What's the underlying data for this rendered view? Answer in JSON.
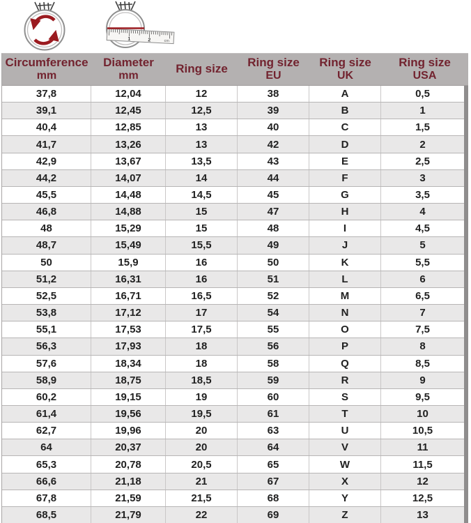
{
  "colors": {
    "header_bg": "#b4b1b1",
    "header_text": "#72232f",
    "accent_red": "#9b1b20",
    "row_bg": "#ffffff",
    "row_alt_bg": "#e9e8e8",
    "body_text": "#212121",
    "grid_line": "#c9c7c7",
    "table_right_edge": "#8f8d8d"
  },
  "icons": {
    "circumference_icon": "ring-with-circular-arrows-icon",
    "diameter_icon": "ring-with-ruler-icon",
    "ruler": {
      "label_1": "1",
      "label_2": "2",
      "unit": "cm"
    }
  },
  "chart_data": {
    "type": "table",
    "columns": [
      {
        "label": "Circumference",
        "sub": "mm"
      },
      {
        "label": "Diameter",
        "sub": "mm"
      },
      {
        "label": "Ring size",
        "sub": ""
      },
      {
        "label": "Ring size",
        "sub": "EU"
      },
      {
        "label": "Ring size",
        "sub": "UK"
      },
      {
        "label": "Ring size",
        "sub": "USA"
      }
    ],
    "rows": [
      [
        "37,8",
        "12,04",
        "12",
        "38",
        "A",
        "0,5"
      ],
      [
        "39,1",
        "12,45",
        "12,5",
        "39",
        "B",
        "1"
      ],
      [
        "40,4",
        "12,85",
        "13",
        "40",
        "C",
        "1,5"
      ],
      [
        "41,7",
        "13,26",
        "13",
        "42",
        "D",
        "2"
      ],
      [
        "42,9",
        "13,67",
        "13,5",
        "43",
        "E",
        "2,5"
      ],
      [
        "44,2",
        "14,07",
        "14",
        "44",
        "F",
        "3"
      ],
      [
        "45,5",
        "14,48",
        "14,5",
        "45",
        "G",
        "3,5"
      ],
      [
        "46,8",
        "14,88",
        "15",
        "47",
        "H",
        "4"
      ],
      [
        "48",
        "15,29",
        "15",
        "48",
        "I",
        "4,5"
      ],
      [
        "48,7",
        "15,49",
        "15,5",
        "49",
        "J",
        "5"
      ],
      [
        "50",
        "15,9",
        "16",
        "50",
        "K",
        "5,5"
      ],
      [
        "51,2",
        "16,31",
        "16",
        "51",
        "L",
        "6"
      ],
      [
        "52,5",
        "16,71",
        "16,5",
        "52",
        "M",
        "6,5"
      ],
      [
        "53,8",
        "17,12",
        "17",
        "54",
        "N",
        "7"
      ],
      [
        "55,1",
        "17,53",
        "17,5",
        "55",
        "O",
        "7,5"
      ],
      [
        "56,3",
        "17,93",
        "18",
        "56",
        "P",
        "8"
      ],
      [
        "57,6",
        "18,34",
        "18",
        "58",
        "Q",
        "8,5"
      ],
      [
        "58,9",
        "18,75",
        "18,5",
        "59",
        "R",
        "9"
      ],
      [
        "60,2",
        "19,15",
        "19",
        "60",
        "S",
        "9,5"
      ],
      [
        "61,4",
        "19,56",
        "19,5",
        "61",
        "T",
        "10"
      ],
      [
        "62,7",
        "19,96",
        "20",
        "63",
        "U",
        "10,5"
      ],
      [
        "64",
        "20,37",
        "20",
        "64",
        "V",
        "11"
      ],
      [
        "65,3",
        "20,78",
        "20,5",
        "65",
        "W",
        "11,5"
      ],
      [
        "66,6",
        "21,18",
        "21",
        "67",
        "X",
        "12"
      ],
      [
        "67,8",
        "21,59",
        "21,5",
        "68",
        "Y",
        "12,5"
      ],
      [
        "68,5",
        "21,79",
        "22",
        "69",
        "Z",
        "13"
      ]
    ]
  }
}
